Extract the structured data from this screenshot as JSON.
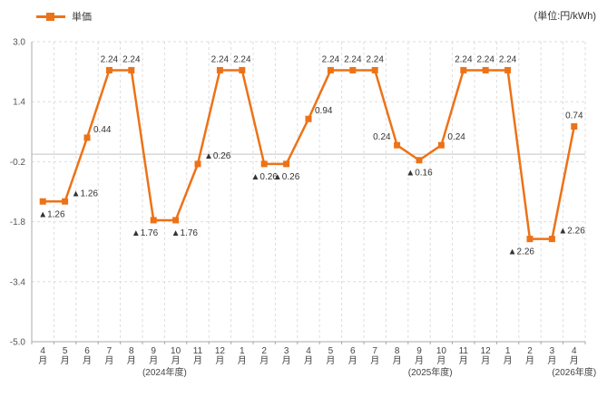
{
  "legend": {
    "label": "単価"
  },
  "unit_label": "(単位:円/kWh)",
  "colors": {
    "accent": "#ED7217",
    "label_text": "#333333",
    "tick_text": "#555555",
    "grid": "#DDDDDD",
    "zero_line": "#C4C4C4",
    "axis": "#AAAAAA"
  },
  "chart_data": {
    "type": "line",
    "title": "",
    "xlabel": "",
    "ylabel": "",
    "x": [
      "4月",
      "5月",
      "6月",
      "7月",
      "8月",
      "9月",
      "10月",
      "11月",
      "12月",
      "1月",
      "2月",
      "3月",
      "4月",
      "5月",
      "6月",
      "7月",
      "8月",
      "9月",
      "10月",
      "11月",
      "12月",
      "1月",
      "2月",
      "3月",
      "4月"
    ],
    "x_groups": [
      {
        "label": "(2024年度)",
        "start": 0,
        "end": 11
      },
      {
        "label": "(2025年度)",
        "start": 12,
        "end": 23
      },
      {
        "label": "(2026年度)",
        "start": 24,
        "end": 24
      }
    ],
    "series": [
      {
        "name": "単価",
        "values": [
          -1.26,
          -1.26,
          0.44,
          2.24,
          2.24,
          -1.76,
          -1.76,
          -0.26,
          2.24,
          2.24,
          -0.26,
          -0.26,
          0.94,
          2.24,
          2.24,
          2.24,
          0.24,
          -0.16,
          0.24,
          2.24,
          2.24,
          2.24,
          -2.26,
          -2.26,
          0.74
        ],
        "point_labels": [
          "▲1.26",
          "▲1.26",
          "0.44",
          "2.24",
          "2.24",
          "▲1.76",
          "▲1.76",
          "▲0.26",
          "2.24",
          "2.24",
          "▲0.26",
          "▲0.26",
          "0.94",
          "2.24",
          "2.24",
          "2.24",
          "0.24",
          "▲0.16",
          "0.24",
          "2.24",
          "2.24",
          "2.24",
          "▲2.26",
          "▲2.26",
          "0.74"
        ],
        "label_positions": [
          "below-right",
          "above-right",
          "above-right",
          "above",
          "above",
          "below-left",
          "below-right",
          "above-right",
          "above",
          "above",
          "below",
          "below",
          "above-right",
          "above",
          "above",
          "above",
          "above-left",
          "below",
          "above-right",
          "above",
          "above",
          "above",
          "below-left",
          "above-right",
          "above"
        ]
      }
    ],
    "ylim": [
      -5.0,
      3.0
    ],
    "yticks": [
      3.0,
      1.4,
      -0.2,
      -1.8,
      -3.4,
      -5.0
    ],
    "ytick_labels": [
      "3.0",
      "1.4",
      "-0.2",
      "-1.8",
      "-3.4",
      "-5.0"
    ],
    "zero_line": true,
    "grid": true,
    "legend_position": "top-left"
  }
}
